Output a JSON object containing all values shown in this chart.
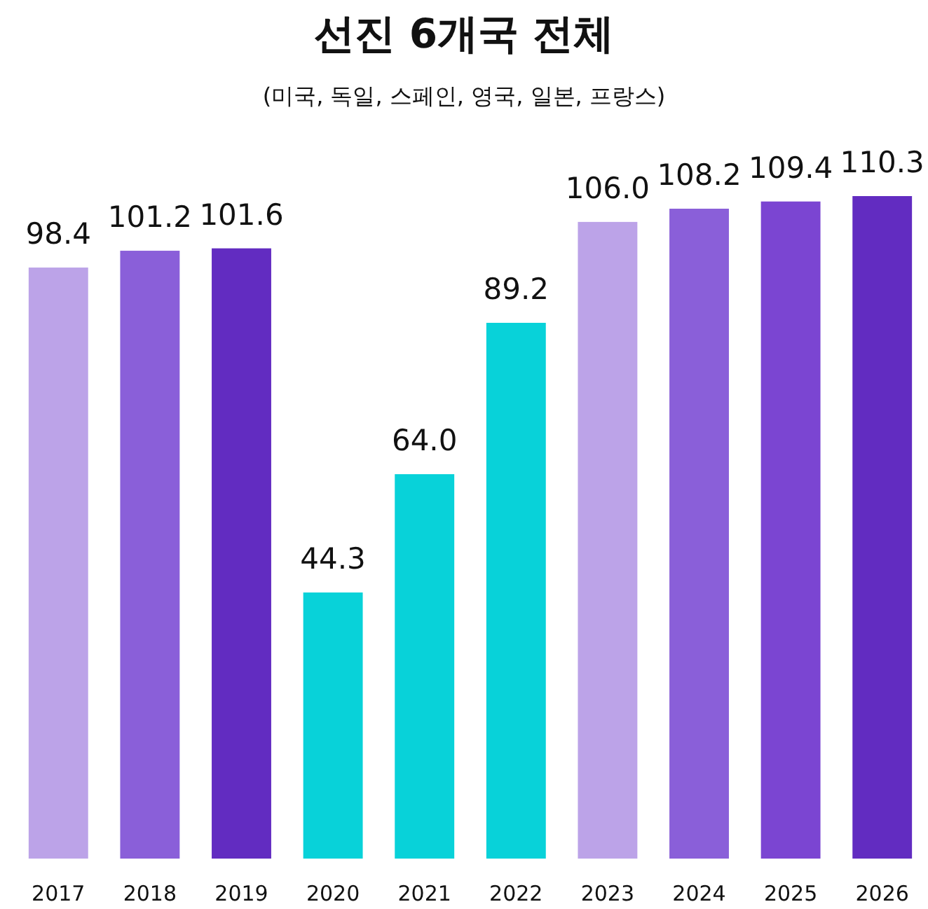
{
  "chart_data": {
    "type": "bar",
    "title": "선진 6개국 전체",
    "subtitle": "(미국, 독일, 스페인, 영국, 일본, 프랑스)",
    "categories": [
      "2017",
      "2018",
      "2019",
      "2020",
      "2021",
      "2022",
      "2023",
      "2024",
      "2025",
      "2026"
    ],
    "values": [
      98.4,
      101.2,
      101.6,
      44.3,
      64.0,
      89.2,
      106.0,
      108.2,
      109.4,
      110.3
    ],
    "value_labels": [
      "98.4",
      "101.2",
      "101.6",
      "44.3",
      "64.0",
      "89.2",
      "106.0",
      "108.2",
      "109.4",
      "110.3"
    ],
    "colors": [
      "#bca3e8",
      "#8a5fd9",
      "#622cc1",
      "#08d2d9",
      "#08d2d9",
      "#08d2d9",
      "#bca3e8",
      "#8a5fd9",
      "#7b45d2",
      "#622cc1"
    ]
  }
}
